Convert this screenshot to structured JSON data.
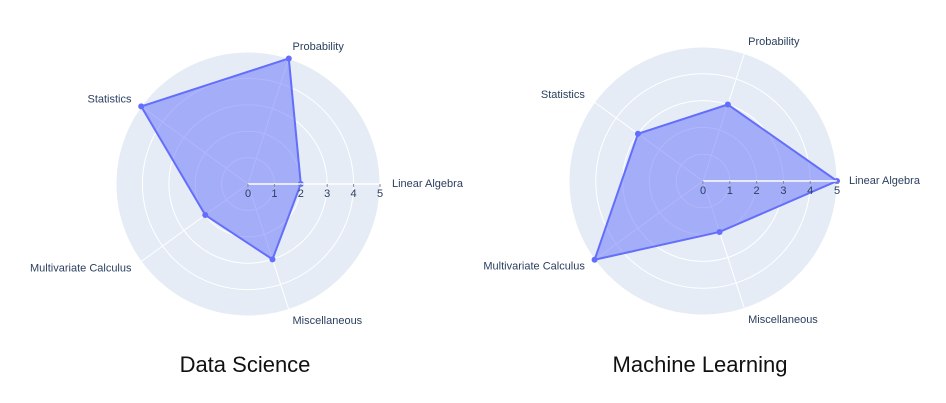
{
  "chart_data": [
    {
      "type": "radar",
      "title": "Data Science",
      "categories": [
        "Linear Algebra",
        "Probability",
        "Statistics",
        "Multivariate Calculus",
        "Miscellaneous"
      ],
      "values": [
        2,
        5,
        5,
        2,
        3
      ],
      "color": "#636efa",
      "rlim": [
        0,
        5
      ],
      "rticks": [
        0,
        1,
        2,
        3,
        4,
        5
      ]
    },
    {
      "type": "radar",
      "title": "Machine Learning",
      "categories": [
        "Linear Algebra",
        "Probability",
        "Statistics",
        "Multivariate Calculus",
        "Miscellaneous"
      ],
      "values": [
        5,
        3,
        3,
        5,
        2
      ],
      "color": "#636efa",
      "rlim": [
        0,
        5
      ],
      "rticks": [
        0,
        1,
        2,
        3,
        4,
        5
      ]
    }
  ]
}
